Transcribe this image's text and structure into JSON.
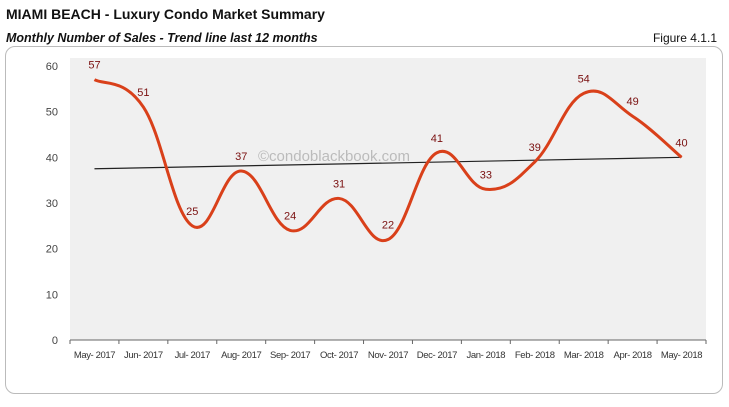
{
  "header": {
    "title": "MIAMI BEACH - Luxury Condo Market Summary",
    "subtitle": "Monthly Number of Sales - Trend line last 12 months",
    "figure": "Figure 4.1.1"
  },
  "watermark": "©condoblackbook.com",
  "chart_data": {
    "type": "line",
    "categories": [
      "May- 2017",
      "Jun- 2017",
      "Jul- 2017",
      "Aug- 2017",
      "Sep- 2017",
      "Oct- 2017",
      "Nov- 2017",
      "Dec- 2017",
      "Jan- 2018",
      "Feb- 2018",
      "Mar- 2018",
      "Apr- 2018",
      "May- 2018"
    ],
    "values": [
      57,
      51,
      25,
      37,
      24,
      31,
      22,
      41,
      33,
      39,
      54,
      49,
      40
    ],
    "trendline": {
      "start": 37.5,
      "end": 40
    },
    "ylim": [
      0,
      60
    ],
    "yticks": [
      0,
      10,
      20,
      30,
      40,
      50,
      60
    ],
    "line_color": "#d9401a",
    "trend_color": "#222222",
    "label_color": "#7a1010",
    "plot_bg": "#f0f0f0",
    "smooth": true,
    "grid": false
  }
}
